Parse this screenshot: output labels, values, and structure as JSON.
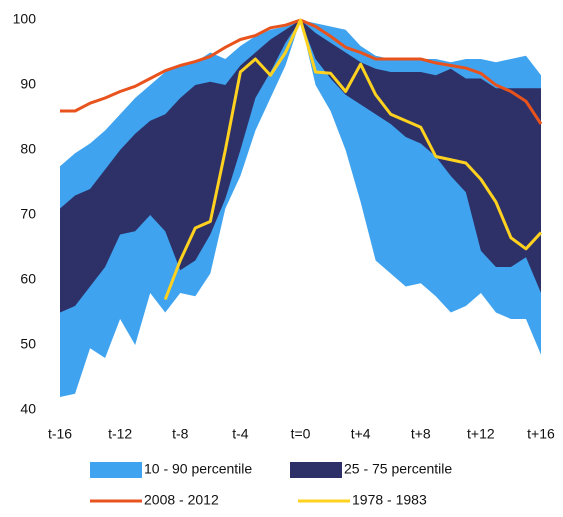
{
  "chart_data": {
    "type": "band-line",
    "categories": [
      "t-16",
      null,
      null,
      null,
      "t-12",
      null,
      null,
      null,
      "t-8",
      null,
      null,
      null,
      "t-4",
      null,
      null,
      null,
      "t=0",
      null,
      null,
      null,
      "t+4",
      null,
      null,
      null,
      "t+8",
      null,
      null,
      null,
      "t+12",
      null,
      null,
      null,
      "t+16"
    ],
    "ylim": [
      40,
      100
    ],
    "yticks": [
      40,
      50,
      60,
      70,
      80,
      90,
      100
    ],
    "grid": false,
    "bands": [
      {
        "name": "10 - 90 percentile",
        "color": "#3fa3ef",
        "values": [
          77.5,
          79.5,
          81,
          83,
          85.5,
          88,
          90,
          92,
          93,
          93.5,
          95,
          94,
          96,
          97.5,
          98.5,
          99,
          100,
          99.5,
          99,
          98.5,
          96,
          94.5,
          94,
          94,
          94,
          94,
          93.5,
          94,
          94,
          93.5,
          94,
          94.5,
          91.5
        ],
        "low": [
          42,
          42.5,
          49.5,
          48,
          54,
          50,
          58,
          55,
          58,
          57.5,
          61,
          71,
          76,
          83,
          88,
          93,
          100,
          90,
          86,
          80,
          72,
          63,
          61,
          59,
          59.5,
          57.5,
          55,
          56,
          58,
          55,
          54,
          54,
          48.5
        ]
      },
      {
        "name": "25 - 75 percentile",
        "color": "#2e3168",
        "values": [
          71,
          73,
          74,
          77,
          80,
          82.5,
          84.5,
          85.5,
          88,
          90,
          90.5,
          90,
          93,
          95,
          97,
          98.5,
          100,
          98,
          96.5,
          95,
          93.5,
          92.5,
          92,
          92,
          92,
          91.5,
          92.5,
          91,
          91,
          89.5,
          89.5,
          89.5,
          89.5
        ],
        "low": [
          55,
          56,
          59,
          62,
          67,
          67.5,
          70,
          67.5,
          61.5,
          63,
          67,
          72.5,
          80,
          88,
          92,
          96.5,
          100,
          94,
          91,
          88.5,
          87,
          85.5,
          84,
          82,
          81,
          79,
          76,
          73.5,
          64.5,
          62,
          62,
          63.5,
          58
        ]
      }
    ],
    "series": [
      {
        "name": "2008 - 2012",
        "color": "#e8531d",
        "values": [
          86,
          86,
          87.2,
          88,
          89,
          89.8,
          91,
          92.2,
          93,
          93.6,
          94.4,
          95.8,
          97,
          97.6,
          98.8,
          99.2,
          100,
          99,
          97.5,
          95.8,
          95,
          94,
          94,
          94,
          94,
          93.4,
          93,
          92.6,
          91.8,
          90,
          89,
          87.5,
          84
        ]
      },
      {
        "name": "1978 - 1983",
        "color": "#ffd21f",
        "values": [
          null,
          null,
          null,
          null,
          null,
          null,
          null,
          57,
          63,
          68,
          69,
          80,
          92,
          94,
          91.5,
          95,
          100,
          92,
          91.8,
          89,
          93.2,
          88.5,
          85.5,
          84.5,
          83.5,
          79,
          78.5,
          78,
          75.5,
          72,
          66.5,
          64.8,
          67.3
        ]
      }
    ]
  }
}
